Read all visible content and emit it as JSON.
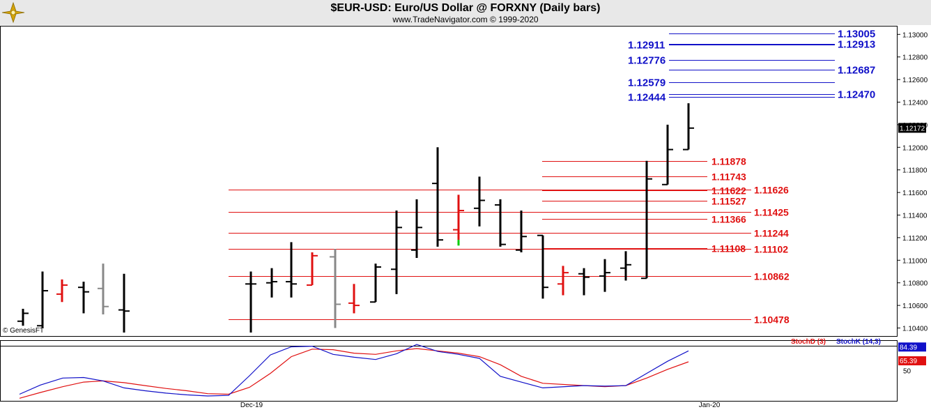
{
  "header": {
    "title": "$EUR-USD:  Euro/US Dollar @ FORXNY  (Daily bars)",
    "subtitle": "www.TradeNavigator.com © 1999-2020"
  },
  "watermark": "© GenesisFT",
  "colors": {
    "bar": "#000000",
    "bar_down": "#e01010",
    "bar_neutral": "#888888",
    "bar_tick": "#00cc00",
    "level_blue": "#1010c8",
    "level_red": "#e01010",
    "last_price_bg": "#000000"
  },
  "chart_data": [
    {
      "type": "ohlc",
      "title": "$EUR-USD:  Euro/US Dollar @ FORXNY  (Daily bars)",
      "ylim": [
        1.1035,
        1.1312
      ],
      "y_ticks": [
        "1.13000",
        "1.12800",
        "1.12600",
        "1.12400",
        "1.12200",
        "1.12000",
        "1.11800",
        "1.11600",
        "1.11400",
        "1.11200",
        "1.11000",
        "1.10800",
        "1.10600",
        "1.10400"
      ],
      "x_ticks": [
        "Dec-19",
        "Jan-20"
      ],
      "last_price": "1.12172",
      "bars": [
        {
          "date": "2019-11-18",
          "open": 1.1046,
          "high": 1.1057,
          "low": 1.1042,
          "close": 1.1053,
          "color": "bar"
        },
        {
          "date": "2019-11-19",
          "open": 1.1042,
          "high": 1.109,
          "low": 1.104,
          "close": 1.1073,
          "color": "bar"
        },
        {
          "date": "2019-11-20",
          "open": 1.107,
          "high": 1.1083,
          "low": 1.1063,
          "close": 1.1078,
          "color": "bar_down"
        },
        {
          "date": "2019-11-21",
          "open": 1.1076,
          "high": 1.1081,
          "low": 1.1053,
          "close": 1.1072,
          "color": "bar"
        },
        {
          "date": "2019-11-22",
          "open": 1.1075,
          "high": 1.1097,
          "low": 1.1052,
          "close": 1.1059,
          "color": "bar_neutral"
        },
        {
          "date": "2019-11-25",
          "open": 1.1056,
          "high": 1.1088,
          "low": 1.1036,
          "close": 1.1055,
          "color": "bar"
        },
        {
          "date": "2019-11-29",
          "open": 1.1079,
          "high": 1.109,
          "low": 1.1036,
          "close": 1.1079,
          "color": "bar"
        },
        {
          "date": "2019-12-02",
          "open": 1.108,
          "high": 1.1093,
          "low": 1.1067,
          "close": 1.1081,
          "color": "bar"
        },
        {
          "date": "2019-12-03",
          "open": 1.1081,
          "high": 1.1116,
          "low": 1.1067,
          "close": 1.1079,
          "color": "bar"
        },
        {
          "date": "2019-12-04",
          "open": 1.1078,
          "high": 1.1107,
          "low": 1.1078,
          "close": 1.1104,
          "color": "bar_down"
        },
        {
          "date": "2019-12-05",
          "open": 1.1103,
          "high": 1.111,
          "low": 1.104,
          "close": 1.1061,
          "color": "bar_neutral"
        },
        {
          "date": "2019-12-06",
          "open": 1.1062,
          "high": 1.1079,
          "low": 1.1053,
          "close": 1.106,
          "color": "bar_down"
        },
        {
          "date": "2019-12-09",
          "open": 1.1063,
          "high": 1.1097,
          "low": 1.1063,
          "close": 1.1094,
          "color": "bar"
        },
        {
          "date": "2019-12-10",
          "open": 1.1092,
          "high": 1.1144,
          "low": 1.107,
          "close": 1.1129,
          "color": "bar"
        },
        {
          "date": "2019-12-11",
          "open": 1.1109,
          "high": 1.1154,
          "low": 1.1102,
          "close": 1.1129,
          "color": "bar"
        },
        {
          "date": "2019-12-12",
          "open": 1.1168,
          "high": 1.12,
          "low": 1.1112,
          "close": 1.1118,
          "color": "bar"
        },
        {
          "date": "2019-12-13",
          "open": 1.1127,
          "high": 1.1158,
          "low": 1.1118,
          "close": 1.1144,
          "color": "bar_down"
        },
        {
          "date": "2019-12-16",
          "open": 1.1146,
          "high": 1.1174,
          "low": 1.113,
          "close": 1.1153,
          "color": "bar"
        },
        {
          "date": "2019-12-17",
          "open": 1.1149,
          "high": 1.1154,
          "low": 1.1112,
          "close": 1.1114,
          "color": "bar"
        },
        {
          "date": "2019-12-18",
          "open": 1.1109,
          "high": 1.1144,
          "low": 1.1107,
          "close": 1.1121,
          "color": "bar"
        },
        {
          "date": "2019-12-19",
          "open": 1.1122,
          "high": 1.1122,
          "low": 1.1066,
          "close": 1.1076,
          "color": "bar"
        },
        {
          "date": "2019-12-20",
          "open": 1.1079,
          "high": 1.1095,
          "low": 1.1069,
          "close": 1.1089,
          "color": "bar_down"
        },
        {
          "date": "2019-12-23",
          "open": 1.1088,
          "high": 1.1093,
          "low": 1.1069,
          "close": 1.1085,
          "color": "bar"
        },
        {
          "date": "2019-12-24",
          "open": 1.1086,
          "high": 1.1101,
          "low": 1.1072,
          "close": 1.1089,
          "color": "bar"
        },
        {
          "date": "2019-12-26",
          "open": 1.1093,
          "high": 1.1108,
          "low": 1.1082,
          "close": 1.1096,
          "color": "bar"
        },
        {
          "date": "2019-12-27",
          "open": 1.1084,
          "high": 1.1188,
          "low": 1.1084,
          "close": 1.1172,
          "color": "bar"
        },
        {
          "date": "2019-12-30",
          "open": 1.1167,
          "high": 1.122,
          "low": 1.1167,
          "close": 1.1198,
          "color": "bar"
        },
        {
          "date": "2019-12-31",
          "open": 1.1198,
          "high": 1.1239,
          "low": 1.1198,
          "close": 1.1217,
          "color": "bar"
        }
      ],
      "levels_red": [
        {
          "value": 1.11878,
          "label": "1.11878"
        },
        {
          "value": 1.11743,
          "label": "1.11743"
        },
        {
          "value": 1.11626,
          "label": "1.11626"
        },
        {
          "value": 1.11622,
          "label": "1.11622"
        },
        {
          "value": 1.11527,
          "label": "1.11527"
        },
        {
          "value": 1.11425,
          "label": "1.11425"
        },
        {
          "value": 1.11366,
          "label": "1.11366"
        },
        {
          "value": 1.11244,
          "label": "1.11244"
        },
        {
          "value": 1.11108,
          "label": "1.11108"
        },
        {
          "value": 1.11102,
          "label": "1.11102"
        },
        {
          "value": 1.10862,
          "label": "1.10862"
        },
        {
          "value": 1.10478,
          "label": "1.10478"
        }
      ],
      "levels_blue": [
        {
          "value": 1.13005,
          "label": "1.13005"
        },
        {
          "value": 1.12913,
          "label": "1.12913"
        },
        {
          "value": 1.12911,
          "label": "1.12911"
        },
        {
          "value": 1.12776,
          "label": "1.12776"
        },
        {
          "value": 1.12687,
          "label": "1.12687"
        },
        {
          "value": 1.12579,
          "label": "1.12579"
        },
        {
          "value": 1.1247,
          "label": "1.12470"
        },
        {
          "value": 1.12444,
          "label": "1.12444"
        }
      ]
    },
    {
      "type": "line",
      "ylim": [
        0,
        100
      ],
      "y_ticks": [
        "50"
      ],
      "series": [
        {
          "name": "StochD (3)",
          "color": "#e01010",
          "last_label": "65.39",
          "values": [
            2,
            12,
            22,
            30,
            32,
            29,
            24,
            19,
            15,
            10,
            9,
            21,
            45,
            74,
            87,
            86,
            80,
            78,
            84,
            88,
            84,
            80,
            74,
            60,
            40,
            28,
            24,
            22,
            24,
            37,
            52,
            65
          ]
        },
        {
          "name": "StochK (14,3)",
          "color": "#1010c8",
          "last_label": "84.39",
          "values": [
            9,
            25,
            37,
            38,
            32,
            20,
            15,
            11,
            8,
            6,
            7,
            41,
            77,
            91,
            92,
            78,
            73,
            69,
            79,
            95,
            83,
            78,
            71,
            40,
            30,
            20,
            24,
            23,
            24,
            45,
            66,
            84
          ]
        }
      ]
    }
  ]
}
